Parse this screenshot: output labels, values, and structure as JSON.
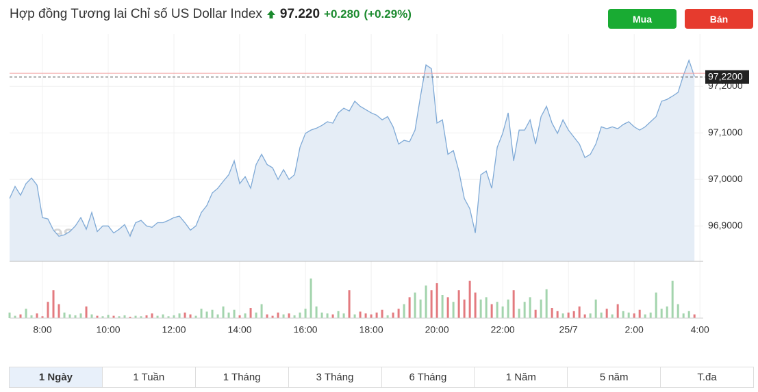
{
  "header": {
    "title": "Hợp đồng Tương lai Chỉ số US Dollar Index",
    "price": "97.220",
    "change": "+0.280",
    "change_pct": "(+0.29%)"
  },
  "buttons": [
    "Mua",
    "Bán"
  ],
  "tabs": [
    "1 Ngày",
    "1 Tuần",
    "1 Tháng",
    "3 Tháng",
    "6 Tháng",
    "1 Năm",
    "5 năm",
    "T.đa"
  ],
  "chart_data": {
    "type": "area",
    "watermark": "Investing.com",
    "x": [
      420,
      430,
      440,
      450,
      460,
      470,
      480,
      490,
      500,
      510,
      520,
      530,
      540,
      550,
      560,
      570,
      580,
      590,
      600,
      610,
      620,
      630,
      640,
      650,
      660,
      670,
      680,
      690,
      700,
      710,
      720,
      730,
      740,
      750,
      760,
      770,
      780,
      790,
      800,
      810,
      820,
      830,
      840,
      850,
      860,
      870,
      880,
      890,
      900,
      910,
      920,
      930,
      940,
      950,
      960,
      970,
      980,
      990,
      1000,
      1010,
      1020,
      1030,
      1040,
      1050,
      1060,
      1070,
      1080,
      1090,
      1100,
      1110,
      1120,
      1130,
      1140,
      1150,
      1160,
      1170,
      1180,
      1190,
      1200,
      1210,
      1220,
      1230,
      1240,
      1250,
      1260,
      1270,
      1280,
      1290,
      1300,
      1310,
      1320,
      1330,
      1340,
      1350,
      1360,
      1370,
      1380,
      1390,
      1400,
      1410,
      1420,
      1430,
      1440,
      1450,
      1460,
      1470,
      1480,
      1490,
      1500,
      1510,
      1520,
      1530,
      1540,
      1550,
      1560,
      1570,
      1580,
      1590,
      1600,
      1610,
      1620,
      1630,
      1640,
      1650,
      1660,
      1670
    ],
    "series": [
      {
        "name": "US Dollar Index",
        "color": "#7ea9d6",
        "fill": "#e5edf6",
        "values": [
          96.959,
          96.985,
          96.966,
          96.991,
          97.003,
          96.988,
          96.918,
          96.915,
          96.891,
          96.878,
          96.881,
          96.888,
          96.9,
          96.918,
          96.893,
          96.929,
          96.888,
          96.9,
          96.9,
          96.885,
          96.893,
          96.903,
          96.878,
          96.907,
          96.912,
          96.9,
          96.897,
          96.907,
          96.907,
          96.912,
          96.918,
          96.921,
          96.907,
          96.891,
          96.9,
          96.929,
          96.944,
          96.971,
          96.981,
          96.996,
          97.01,
          97.04,
          96.991,
          97.006,
          96.981,
          97.032,
          97.054,
          97.032,
          97.025,
          97.0,
          97.021,
          97.0,
          97.01,
          97.069,
          97.099,
          97.106,
          97.11,
          97.116,
          97.124,
          97.121,
          97.143,
          97.153,
          97.147,
          97.168,
          97.157,
          97.15,
          97.143,
          97.138,
          97.128,
          97.135,
          97.113,
          97.076,
          97.084,
          97.081,
          97.106,
          97.179,
          97.246,
          97.238,
          97.121,
          97.128,
          97.054,
          97.062,
          97.018,
          96.959,
          96.937,
          96.885,
          97.01,
          97.018,
          96.981,
          97.069,
          97.099,
          97.143,
          97.04,
          97.106,
          97.106,
          97.128,
          97.076,
          97.135,
          97.157,
          97.121,
          97.099,
          97.128,
          97.106,
          97.091,
          97.076,
          97.047,
          97.054,
          97.076,
          97.113,
          97.109,
          97.113,
          97.109,
          97.118,
          97.124,
          97.113,
          97.106,
          97.113,
          97.124,
          97.135,
          97.168,
          97.172,
          97.179,
          97.187,
          97.224,
          97.256,
          97.221
        ]
      },
      {
        "name": "Volume",
        "axis": "volume",
        "up_color": "#a3d4ad",
        "down_color": "#e37a7f",
        "values": [
          12,
          5,
          8,
          20,
          6,
          10,
          4,
          35,
          60,
          30,
          12,
          8,
          6,
          10,
          25,
          8,
          5,
          4,
          7,
          5,
          4,
          6,
          3,
          5,
          4,
          6,
          10,
          5,
          8,
          4,
          6,
          10,
          12,
          8,
          5,
          20,
          14,
          18,
          8,
          25,
          12,
          18,
          6,
          10,
          22,
          12,
          30,
          8,
          5,
          12,
          8,
          10,
          6,
          12,
          20,
          85,
          25,
          12,
          10,
          8,
          15,
          10,
          60,
          8,
          14,
          10,
          8,
          12,
          18,
          6,
          12,
          20,
          30,
          45,
          55,
          40,
          70,
          60,
          75,
          50,
          45,
          35,
          60,
          40,
          80,
          55,
          40,
          45,
          30,
          35,
          25,
          40,
          60,
          20,
          35,
          45,
          18,
          40,
          62,
          22,
          15,
          10,
          12,
          15,
          25,
          8,
          10,
          40,
          12,
          20,
          8,
          30,
          15,
          12,
          10,
          18,
          8,
          12,
          55,
          20,
          25,
          80,
          30,
          10,
          15,
          8
        ]
      }
    ],
    "xlim": [
      420,
      1686
    ],
    "xticks": [
      {
        "value": 480,
        "label": "8:00"
      },
      {
        "value": 600,
        "label": "10:00"
      },
      {
        "value": 720,
        "label": "12:00"
      },
      {
        "value": 840,
        "label": "14:00"
      },
      {
        "value": 960,
        "label": "16:00"
      },
      {
        "value": 1080,
        "label": "18:00"
      },
      {
        "value": 1200,
        "label": "20:00"
      },
      {
        "value": 1320,
        "label": "22:00"
      },
      {
        "value": 1440,
        "label": "25/7"
      },
      {
        "value": 1560,
        "label": "2:00"
      },
      {
        "value": 1680,
        "label": "4:00"
      }
    ],
    "ylim": [
      96.824,
      97.312
    ],
    "yticks": [
      {
        "value": 96.9,
        "label": "96,9000"
      },
      {
        "value": 97.0,
        "label": "97,0000"
      },
      {
        "value": 97.1,
        "label": "97,1000"
      },
      {
        "value": 97.2,
        "label": "97,2000"
      }
    ],
    "volume_lim": [
      0,
      100
    ],
    "last_price": {
      "value": 97.22,
      "label": "97,2200"
    },
    "reference_line": 97.228,
    "grid": true
  }
}
